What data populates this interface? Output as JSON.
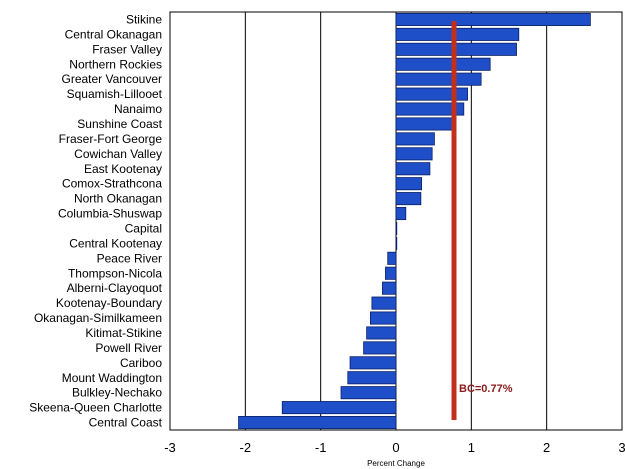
{
  "chart_data": {
    "type": "bar",
    "orientation": "horizontal",
    "xlabel": "Percent Change",
    "xlim": [
      -3,
      3
    ],
    "xticks": [
      -3,
      -2,
      -1,
      0,
      1,
      2,
      3
    ],
    "grid": "vertical",
    "bar_color": "#1f4fc8",
    "bar_edge_color": "#0a1f66",
    "categories": [
      "Stikine",
      "Central Okanagan",
      "Fraser Valley",
      "Northern Rockies",
      "Greater Vancouver",
      "Squamish-Lillooet",
      "Nanaimo",
      "Sunshine Coast",
      "Fraser-Fort George",
      "Cowichan Valley",
      "East Kootenay",
      "Comox-Strathcona",
      "North Okanagan",
      "Columbia-Shuswap",
      "Capital",
      "Central Kootenay",
      "Peace River",
      "Thompson-Nicola",
      "Alberni-Clayoquot",
      "Kootenay-Boundary",
      "Okanagan-Similkameen",
      "Kitimat-Stikine",
      "Powell River",
      "Cariboo",
      "Mount Waddington",
      "Bulkley-Nechako",
      "Skeena-Queen Charlotte",
      "Central Coast"
    ],
    "values": [
      2.58,
      1.63,
      1.6,
      1.25,
      1.13,
      0.95,
      0.9,
      0.75,
      0.51,
      0.48,
      0.45,
      0.34,
      0.33,
      0.13,
      0.01,
      0.01,
      -0.11,
      -0.14,
      -0.18,
      -0.32,
      -0.34,
      -0.39,
      -0.43,
      -0.61,
      -0.64,
      -0.73,
      -1.51,
      -2.09
    ],
    "reference_line": {
      "value": 0.77,
      "label": "BC=0.77%",
      "color": "#c0301a"
    }
  }
}
